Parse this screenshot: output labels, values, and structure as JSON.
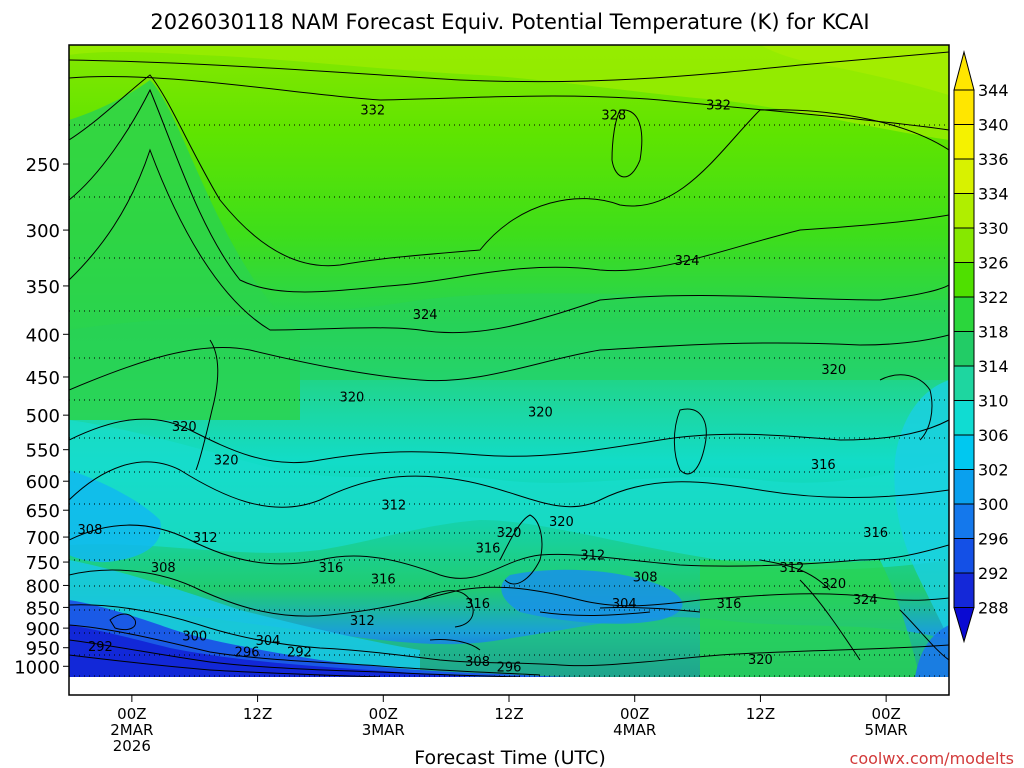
{
  "chart_data": {
    "type": "heatmap",
    "title": "2026030118 NAM Forecast Equiv. Potential Temperature (K) for KCAI",
    "xlabel": "Forecast Time (UTC)",
    "ylabel": "",
    "x_ticks": [
      {
        "value": 6,
        "lines": [
          "00Z",
          "2MAR",
          "2026"
        ]
      },
      {
        "value": 18,
        "lines": [
          "12Z"
        ]
      },
      {
        "value": 30,
        "lines": [
          "00Z",
          "3MAR"
        ]
      },
      {
        "value": 42,
        "lines": [
          "12Z"
        ]
      },
      {
        "value": 54,
        "lines": [
          "00Z",
          "4MAR"
        ]
      },
      {
        "value": 66,
        "lines": [
          "12Z"
        ]
      },
      {
        "value": 78,
        "lines": [
          "00Z",
          "5MAR"
        ]
      }
    ],
    "xlim": [
      0,
      84
    ],
    "y_ticks": [
      250,
      300,
      350,
      400,
      450,
      500,
      550,
      600,
      650,
      700,
      750,
      800,
      850,
      900,
      950,
      1000
    ],
    "ylim": [
      1030,
      180
    ],
    "y_scale": "log",
    "grid": true,
    "colorbar": {
      "labels": [
        344,
        340,
        336,
        334,
        330,
        326,
        322,
        318,
        314,
        310,
        306,
        302,
        300,
        296,
        292,
        288
      ],
      "colors": [
        "#ffe600",
        "#f5f200",
        "#d8f200",
        "#b0ee00",
        "#86e800",
        "#4fe000",
        "#2bd63c",
        "#22cc66",
        "#1ed6a0",
        "#10dcd2",
        "#00c8f0",
        "#0aa0ee",
        "#1478ec",
        "#1450e6",
        "#1428d8",
        "#0a0ad2"
      ]
    },
    "contour_labels": [
      {
        "x": 29,
        "y": 215,
        "text": "332"
      },
      {
        "x": 52,
        "y": 218,
        "text": "328"
      },
      {
        "x": 62,
        "y": 212,
        "text": "332"
      },
      {
        "x": 59,
        "y": 326,
        "text": "324"
      },
      {
        "x": 34,
        "y": 378,
        "text": "324"
      },
      {
        "x": 73,
        "y": 440,
        "text": "320"
      },
      {
        "x": 27,
        "y": 475,
        "text": "320"
      },
      {
        "x": 45,
        "y": 495,
        "text": "320"
      },
      {
        "x": 11,
        "y": 515,
        "text": "320"
      },
      {
        "x": 15,
        "y": 565,
        "text": "320"
      },
      {
        "x": 72,
        "y": 572,
        "text": "316"
      },
      {
        "x": 31,
        "y": 640,
        "text": "312"
      },
      {
        "x": 47,
        "y": 670,
        "text": "320"
      },
      {
        "x": 42,
        "y": 690,
        "text": "320"
      },
      {
        "x": 2,
        "y": 685,
        "text": "308"
      },
      {
        "x": 13,
        "y": 700,
        "text": "312"
      },
      {
        "x": 40,
        "y": 720,
        "text": "316"
      },
      {
        "x": 50,
        "y": 735,
        "text": "312"
      },
      {
        "x": 77,
        "y": 690,
        "text": "316"
      },
      {
        "x": 9,
        "y": 760,
        "text": "308"
      },
      {
        "x": 25,
        "y": 760,
        "text": "316"
      },
      {
        "x": 30,
        "y": 785,
        "text": "316"
      },
      {
        "x": 55,
        "y": 780,
        "text": "308"
      },
      {
        "x": 69,
        "y": 760,
        "text": "312"
      },
      {
        "x": 73,
        "y": 795,
        "text": "320"
      },
      {
        "x": 76,
        "y": 830,
        "text": "324"
      },
      {
        "x": 39,
        "y": 840,
        "text": "316"
      },
      {
        "x": 53,
        "y": 840,
        "text": "304"
      },
      {
        "x": 63,
        "y": 840,
        "text": "316"
      },
      {
        "x": 28,
        "y": 880,
        "text": "312"
      },
      {
        "x": 12,
        "y": 918,
        "text": "300"
      },
      {
        "x": 3,
        "y": 945,
        "text": "292"
      },
      {
        "x": 19,
        "y": 930,
        "text": "304"
      },
      {
        "x": 17,
        "y": 960,
        "text": "296"
      },
      {
        "x": 22,
        "y": 960,
        "text": "292"
      },
      {
        "x": 39,
        "y": 985,
        "text": "308"
      },
      {
        "x": 42,
        "y": 1000,
        "text": "296"
      },
      {
        "x": 66,
        "y": 980,
        "text": "320"
      }
    ]
  },
  "watermark": "coolwx.com/modelts"
}
